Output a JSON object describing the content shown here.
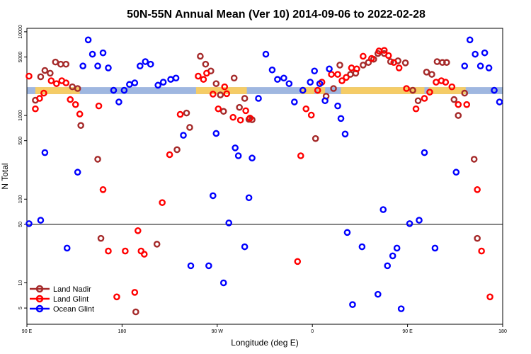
{
  "chart_data": {
    "type": "scatter",
    "title": "50N-55N Annual Mean (Ver 10)   2014-09-06 to 2022-02-28",
    "xlabel": "Longitude (deg E)",
    "ylabel": "N Total",
    "yscale": "log",
    "xlim": [
      90,
      540
    ],
    "ylim": [
      3.2,
      11000
    ],
    "x_ticks": [
      {
        "value": 90,
        "label": "90 E"
      },
      {
        "value": 180,
        "label": "180"
      },
      {
        "value": 270,
        "label": "90 W"
      },
      {
        "value": 360,
        "label": "0"
      },
      {
        "value": 450,
        "label": "90 E"
      },
      {
        "value": 540,
        "label": "180"
      }
    ],
    "y_ticks": [
      {
        "value": 5,
        "label": "5"
      },
      {
        "value": 10,
        "label": "10"
      },
      {
        "value": 50,
        "label": "50"
      },
      {
        "value": 100,
        "label": "100"
      },
      {
        "value": 500,
        "label": "500"
      },
      {
        "value": 1000,
        "label": "1000"
      },
      {
        "value": 5000,
        "label": "5000"
      },
      {
        "value": 10000,
        "label": "10000"
      }
    ],
    "reference_line": 50,
    "legend_position": "bottom-left",
    "series": [
      {
        "name": "Land Nadir",
        "color": "#a52a2a",
        "points": [
          [
            98,
            1520
          ],
          [
            103,
            2900
          ],
          [
            107,
            3450
          ],
          [
            112,
            3200
          ],
          [
            117,
            4350
          ],
          [
            122,
            4100
          ],
          [
            127,
            4100
          ],
          [
            133,
            2200
          ],
          [
            138,
            2100
          ],
          [
            141,
            760
          ],
          [
            157,
            300
          ],
          [
            160,
            34
          ],
          [
            213,
            29
          ],
          [
            232,
            390
          ],
          [
            241,
            1070
          ],
          [
            244,
            720
          ],
          [
            254,
            5100
          ],
          [
            259,
            4100
          ],
          [
            264,
            3400
          ],
          [
            269,
            2400
          ],
          [
            273,
            1760
          ],
          [
            276,
            1120
          ],
          [
            286,
            2800
          ],
          [
            291,
            1250
          ],
          [
            296,
            1600
          ],
          [
            300,
            900
          ],
          [
            303,
            890
          ],
          [
            363,
            530
          ],
          [
            373,
            1700
          ],
          [
            380,
            2100
          ],
          [
            386,
            4000
          ],
          [
            396,
            3100
          ],
          [
            401,
            3200
          ],
          [
            408,
            4000
          ],
          [
            413,
            4300
          ],
          [
            418,
            4700
          ],
          [
            422,
            5500
          ],
          [
            428,
            5500
          ],
          [
            434,
            4400
          ],
          [
            441,
            4500
          ],
          [
            448,
            4250
          ],
          [
            455,
            2000
          ],
          [
            460,
            1500
          ],
          [
            468,
            3300
          ],
          [
            473,
            3100
          ],
          [
            478,
            4400
          ],
          [
            483,
            4300
          ],
          [
            487,
            4300
          ],
          [
            494,
            1550
          ],
          [
            498,
            1000
          ],
          [
            504,
            1850
          ],
          [
            513,
            300
          ],
          [
            516,
            34
          ],
          [
            193,
            4.5
          ]
        ]
      },
      {
        "name": "Land Glint",
        "color": "#ff0000",
        "points": [
          [
            92,
            2950
          ],
          [
            98,
            1200
          ],
          [
            102,
            1600
          ],
          [
            106,
            1850
          ],
          [
            113,
            2600
          ],
          [
            118,
            2400
          ],
          [
            123,
            2600
          ],
          [
            127,
            2450
          ],
          [
            131,
            1550
          ],
          [
            136,
            1350
          ],
          [
            140,
            1040
          ],
          [
            158,
            1300
          ],
          [
            162,
            130
          ],
          [
            167,
            24
          ],
          [
            175,
            6.8
          ],
          [
            183,
            24
          ],
          [
            192,
            7.7
          ],
          [
            195,
            42
          ],
          [
            198,
            24
          ],
          [
            201,
            22
          ],
          [
            218,
            91
          ],
          [
            225,
            340
          ],
          [
            235,
            1030
          ],
          [
            252,
            2950
          ],
          [
            257,
            2700
          ],
          [
            260,
            3200
          ],
          [
            266,
            1800
          ],
          [
            271,
            1200
          ],
          [
            277,
            2200
          ],
          [
            279,
            1820
          ],
          [
            285,
            950
          ],
          [
            292,
            880
          ],
          [
            297,
            1140
          ],
          [
            301,
            930
          ],
          [
            346,
            18
          ],
          [
            349,
            330
          ],
          [
            354,
            1200
          ],
          [
            359,
            1010
          ],
          [
            365,
            2000
          ],
          [
            369,
            2500
          ],
          [
            378,
            3100
          ],
          [
            384,
            3100
          ],
          [
            388,
            2600
          ],
          [
            392,
            2850
          ],
          [
            397,
            3700
          ],
          [
            402,
            3600
          ],
          [
            408,
            5100
          ],
          [
            416,
            4800
          ],
          [
            423,
            5900
          ],
          [
            428,
            6000
          ],
          [
            432,
            5200
          ],
          [
            437,
            4300
          ],
          [
            442,
            3700
          ],
          [
            449,
            2100
          ],
          [
            458,
            1200
          ],
          [
            466,
            1600
          ],
          [
            471,
            1900
          ],
          [
            477,
            2500
          ],
          [
            482,
            2600
          ],
          [
            486,
            2500
          ],
          [
            492,
            2200
          ],
          [
            498,
            1350
          ],
          [
            506,
            1350
          ],
          [
            516,
            130
          ],
          [
            520,
            24
          ],
          [
            528,
            6.8
          ]
        ]
      },
      {
        "name": "Ocean Glint",
        "color": "#0000ff",
        "points": [
          [
            92,
            51
          ],
          [
            103,
            56
          ],
          [
            107,
            360
          ],
          [
            128,
            26
          ],
          [
            138,
            210
          ],
          [
            143,
            3900
          ],
          [
            148,
            8000
          ],
          [
            152,
            5400
          ],
          [
            157,
            3900
          ],
          [
            162,
            5600
          ],
          [
            167,
            3700
          ],
          [
            172,
            2000
          ],
          [
            177,
            1450
          ],
          [
            182,
            2000
          ],
          [
            187,
            2350
          ],
          [
            192,
            2450
          ],
          [
            197,
            3900
          ],
          [
            202,
            4400
          ],
          [
            207,
            4100
          ],
          [
            214,
            2300
          ],
          [
            219,
            2500
          ],
          [
            226,
            2700
          ],
          [
            231,
            2800
          ],
          [
            238,
            580
          ],
          [
            245,
            16
          ],
          [
            262,
            16
          ],
          [
            266,
            110
          ],
          [
            269,
            610
          ],
          [
            276,
            10
          ],
          [
            281,
            52
          ],
          [
            287,
            410
          ],
          [
            290,
            330
          ],
          [
            296,
            27
          ],
          [
            300,
            104
          ],
          [
            303,
            310
          ],
          [
            309,
            1600
          ],
          [
            316,
            5400
          ],
          [
            322,
            3500
          ],
          [
            327,
            2700
          ],
          [
            333,
            2800
          ],
          [
            338,
            2400
          ],
          [
            343,
            1450
          ],
          [
            351,
            2000
          ],
          [
            358,
            2500
          ],
          [
            362,
            3400
          ],
          [
            367,
            2400
          ],
          [
            372,
            1500
          ],
          [
            376,
            3600
          ],
          [
            384,
            1300
          ],
          [
            387,
            920
          ],
          [
            391,
            600
          ],
          [
            393,
            40
          ],
          [
            398,
            5.5
          ],
          [
            407,
            27
          ],
          [
            422,
            7.3
          ],
          [
            427,
            75
          ],
          [
            431,
            16
          ],
          [
            436,
            21
          ],
          [
            440,
            26
          ],
          [
            444,
            4.9
          ],
          [
            452,
            51
          ],
          [
            461,
            56
          ],
          [
            466,
            360
          ],
          [
            476,
            26
          ],
          [
            496,
            210
          ],
          [
            504,
            3900
          ],
          [
            509,
            8000
          ],
          [
            514,
            5400
          ],
          [
            519,
            3900
          ],
          [
            523,
            5600
          ],
          [
            527,
            3700
          ],
          [
            532,
            2000
          ],
          [
            537,
            1450
          ]
        ]
      }
    ],
    "band": {
      "label": "",
      "colors": {
        "land": "#f5cc66",
        "ocean": "#9fb7e0"
      },
      "value_low": 1800,
      "value_high": 2180,
      "land_ranges": [
        [
          98,
          140
        ],
        [
          250,
          298
        ],
        [
          349,
          362
        ],
        [
          365,
          372
        ],
        [
          387,
          466
        ],
        [
          470,
          505
        ]
      ]
    }
  }
}
